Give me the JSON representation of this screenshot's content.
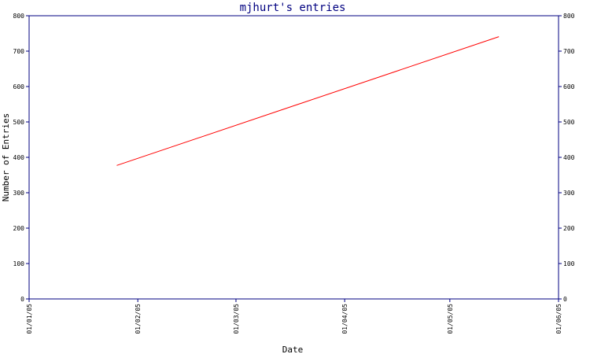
{
  "chart_data": {
    "type": "line",
    "title": "mjhurt's entries",
    "xlabel": "Date",
    "ylabel": "Number of Entries",
    "x_ticks": [
      "01/01/05",
      "01/02/05",
      "01/03/05",
      "01/04/05",
      "01/05/05",
      "01/06/05"
    ],
    "y_ticks": [
      0,
      100,
      200,
      300,
      400,
      500,
      600,
      700,
      800
    ],
    "ylim": [
      0,
      800
    ],
    "xlim": [
      "2005-01-01",
      "2005-06-01"
    ],
    "y_axis_right": true,
    "grid": false,
    "series": [
      {
        "color": "#ff0000",
        "points": [
          {
            "x": "2005-01-26",
            "y": 377
          },
          {
            "x": "2005-05-15",
            "y": 741
          }
        ]
      }
    ]
  },
  "colors": {
    "axis": "#000080",
    "title": "#000080",
    "line": "#ff0000"
  }
}
